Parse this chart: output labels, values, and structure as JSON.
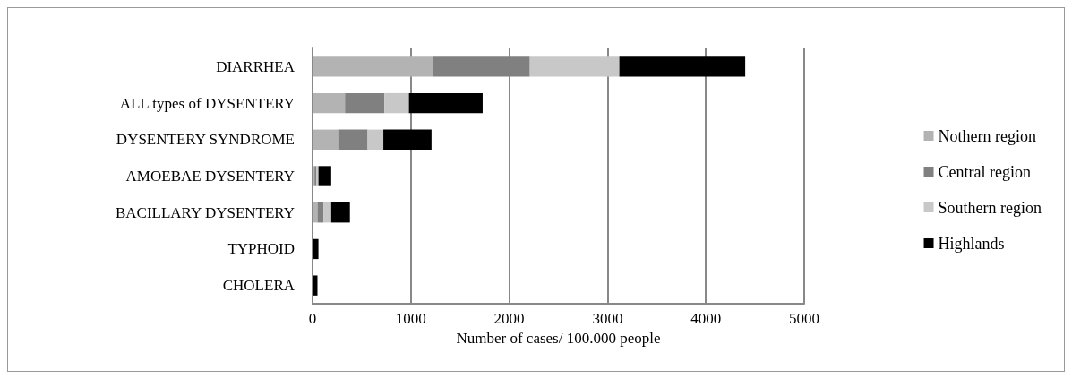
{
  "chart_data": {
    "type": "bar",
    "orientation": "horizontal",
    "stacked": true,
    "xlabel": "Number of cases/ 100.000 people",
    "categories": [
      "DIARRHEA",
      "ALL types of DYSENTERY",
      "DYSENTERY SYNDROME",
      "AMOEBAE DYSENTERY",
      "BACILLARY DYSENTERY",
      "TYPHOID",
      "CHOLERA"
    ],
    "series": [
      {
        "name": "Nothern region",
        "color": "#b3b3b3",
        "values": [
          1220,
          330,
          260,
          20,
          50,
          0,
          0
        ]
      },
      {
        "name": "Central region",
        "color": "#808080",
        "values": [
          990,
          400,
          300,
          20,
          60,
          0,
          0
        ]
      },
      {
        "name": "Southern region",
        "color": "#c8c8c8",
        "values": [
          910,
          250,
          160,
          20,
          80,
          0,
          0
        ]
      },
      {
        "name": "Highlands",
        "color": "#000000",
        "values": [
          1280,
          750,
          490,
          130,
          190,
          60,
          50
        ]
      }
    ],
    "xlim": [
      0,
      5000
    ],
    "xticks": [
      0,
      1000,
      2000,
      3000,
      4000,
      5000
    ],
    "grid": "x",
    "legend": "right"
  }
}
